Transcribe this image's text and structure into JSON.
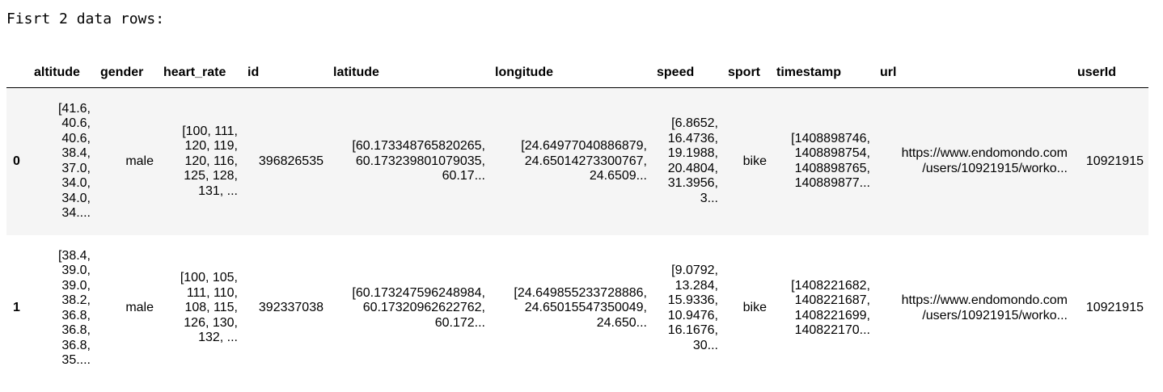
{
  "caption": "Fisrt 2 data rows:",
  "table": {
    "index_header": "",
    "columns": [
      "altitude",
      "gender",
      "heart_rate",
      "id",
      "latitude",
      "longitude",
      "speed",
      "sport",
      "timestamp",
      "url",
      "userId"
    ],
    "rows": [
      {
        "index": "0",
        "altitude": "[41.6,\n40.6,\n40.6,\n38.4,\n37.0,\n34.0,\n34.0,\n34....",
        "gender": "male",
        "heart_rate": "[100, 111,\n120, 119,\n120, 116,\n125, 128,\n131, ...",
        "id": "396826535",
        "latitude": "[60.173348765820265,\n60.173239801079035,\n60.17...",
        "longitude": "[24.64977040886879,\n24.65014273300767,\n24.6509...",
        "speed": "[6.8652,\n16.4736,\n19.1988,\n20.4804,\n31.3956,\n3...",
        "sport": "bike",
        "timestamp": "[1408898746,\n1408898754,\n1408898765,\n140889877...",
        "url": "https://www.endomondo.com\n/users/10921915/worko...",
        "userId": "10921915"
      },
      {
        "index": "1",
        "altitude": "[38.4,\n39.0,\n39.0,\n38.2,\n36.8,\n36.8,\n36.8,\n35....",
        "gender": "male",
        "heart_rate": "[100, 105,\n111, 110,\n108, 115,\n126, 130,\n132, ...",
        "id": "392337038",
        "latitude": "[60.173247596248984,\n60.17320962622762,\n60.172...",
        "longitude": "[24.649855233728886,\n24.65015547350049,\n24.650...",
        "speed": "[9.0792,\n13.284,\n15.9336,\n10.9476,\n16.1676,\n30...",
        "sport": "bike",
        "timestamp": "[1408221682,\n1408221687,\n1408221699,\n140822170...",
        "url": "https://www.endomondo.com\n/users/10921915/worko...",
        "userId": "10921915"
      }
    ]
  }
}
